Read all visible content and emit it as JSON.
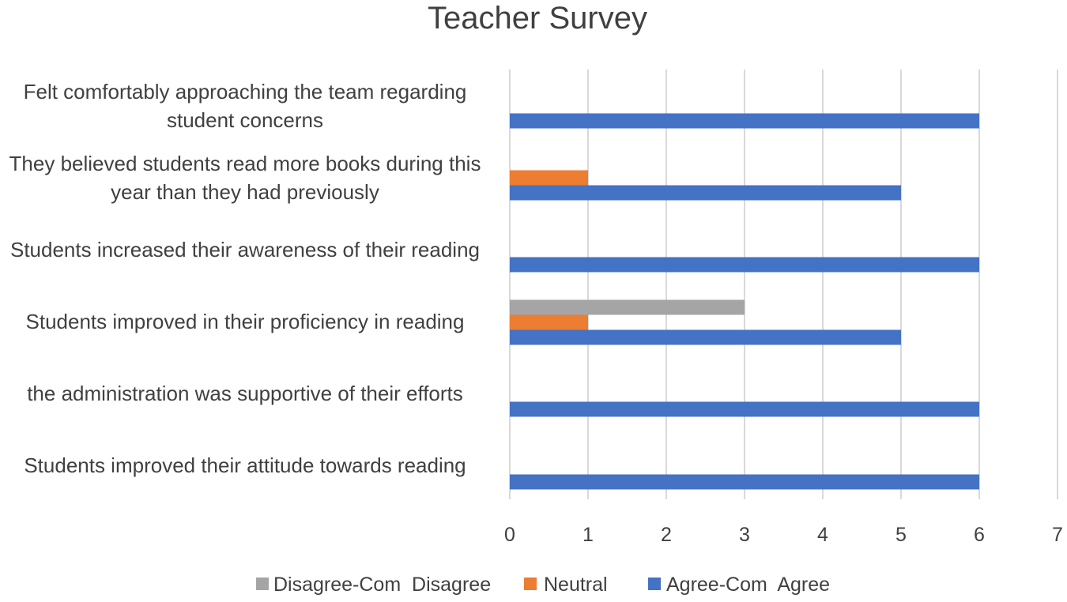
{
  "chart_data": {
    "type": "bar",
    "orientation": "horizontal",
    "title": "Teacher Survey",
    "categories": [
      "Felt comfortably approaching the team regarding student concerns",
      "They believed students read more books during this year than they had previously",
      "Students increased their awareness of their reading",
      "Students improved in their proficiency in reading",
      "the administration was supportive of their efforts",
      "Students improved their attitude towards reading"
    ],
    "category_lines": [
      [
        "Felt comfortably approaching the team regarding",
        "student concerns"
      ],
      [
        "They believed students read more books during this",
        "year than they had previously"
      ],
      [
        "Students increased their awareness of their reading"
      ],
      [
        "Students improved in their proficiency in reading"
      ],
      [
        "the administration was supportive of their efforts"
      ],
      [
        "Students improved their attitude towards reading"
      ]
    ],
    "series": [
      {
        "name": "Disagree-Com  Disagree",
        "color": "#a5a5a5",
        "values": [
          0,
          0,
          0,
          3,
          0,
          0
        ]
      },
      {
        "name": "Neutral",
        "color": "#ed7d31",
        "values": [
          0,
          1,
          0,
          1,
          0,
          0
        ]
      },
      {
        "name": "Agree-Com  Agree",
        "color": "#4472c4",
        "values": [
          6,
          5,
          6,
          5,
          6,
          6
        ]
      }
    ],
    "xlim": [
      0,
      7
    ],
    "xticks": [
      0,
      1,
      2,
      3,
      4,
      5,
      6,
      7
    ],
    "grid": true,
    "legend_position": "bottom"
  }
}
